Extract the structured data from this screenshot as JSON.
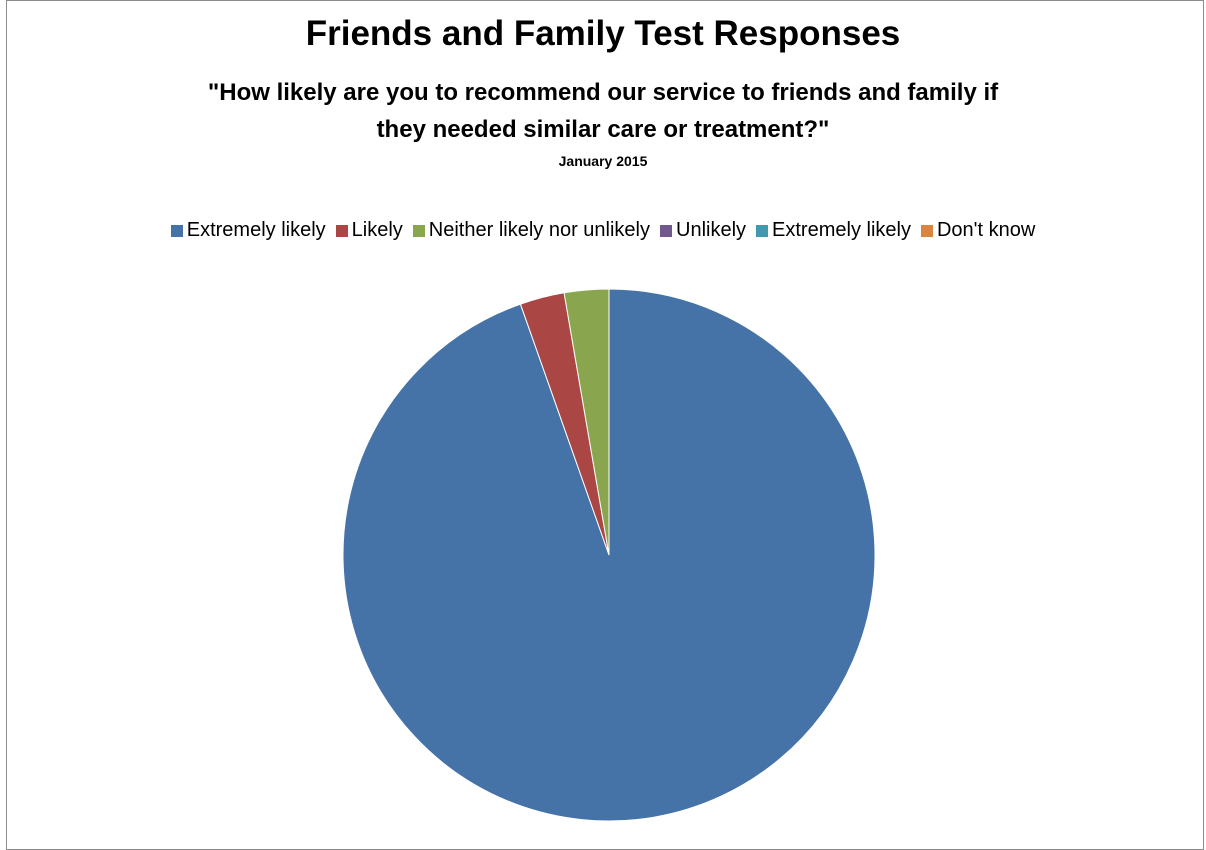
{
  "chart_data": {
    "type": "pie",
    "title": "Friends and Family Test Responses",
    "subtitle_lines": [
      "\"How likely are you to recommend our service to friends and family if",
      "they needed similar care or treatment?\""
    ],
    "date_label": "January 2015",
    "legend_placement": "top",
    "categories": [
      "Extremely likely",
      "Likely",
      "Neither likely nor unlikely",
      "Unlikely",
      "Extremely likely",
      "Don't know"
    ],
    "values": [
      94.6,
      2.7,
      2.7,
      0,
      0,
      0
    ],
    "colors": [
      "#4572a7",
      "#aa4643",
      "#89a54e",
      "#71588f",
      "#4198af",
      "#db843d"
    ]
  }
}
